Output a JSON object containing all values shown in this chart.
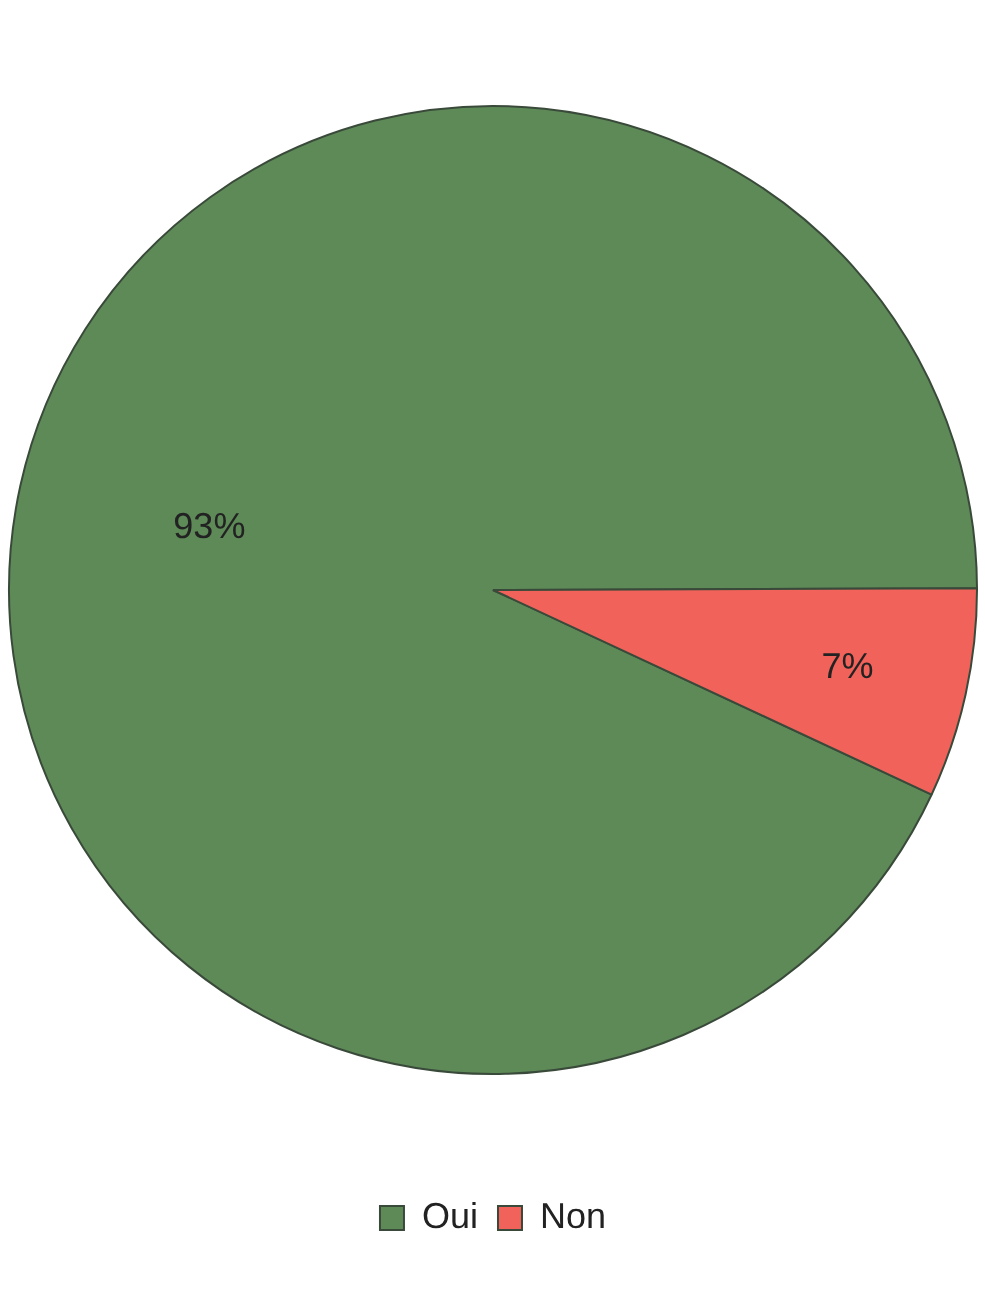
{
  "chart_data": {
    "type": "pie",
    "categories": [
      "Oui",
      "Non"
    ],
    "values": [
      93,
      7
    ],
    "colors": [
      "#5e8a58",
      "#f1625a"
    ],
    "value_labels": [
      "93%",
      "7%"
    ],
    "legend": "bottom"
  }
}
